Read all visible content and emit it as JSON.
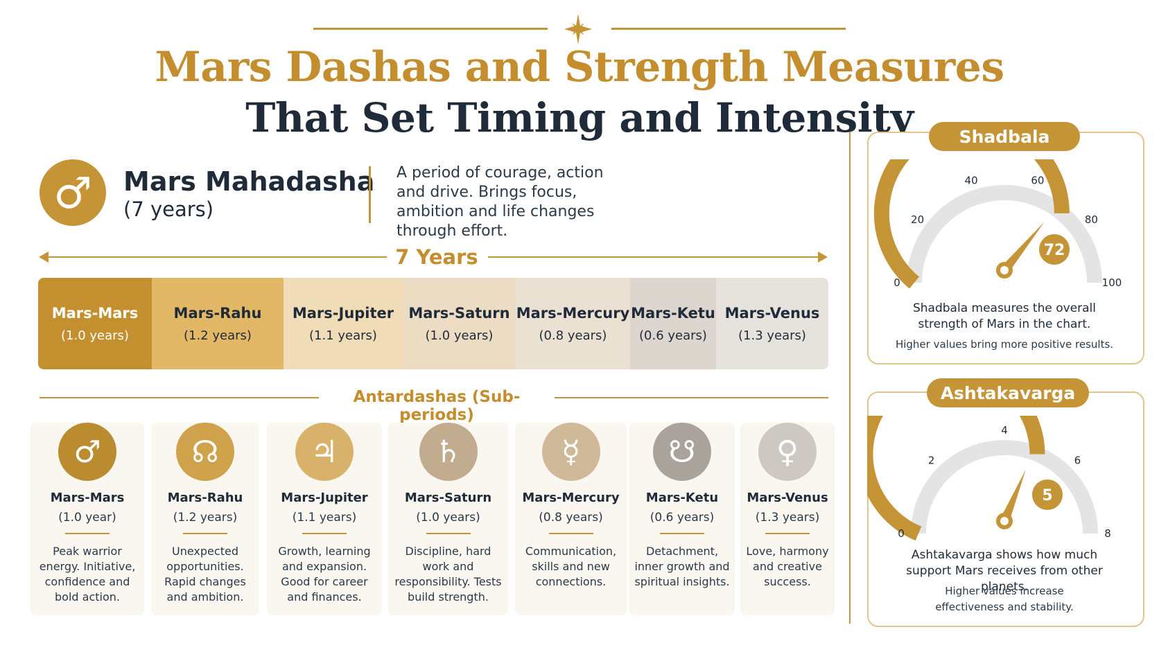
{
  "header": {
    "title_line1": "Mars Dashas and Strength Measures",
    "title_line2": "That Set Timing and Intensity"
  },
  "mahadasha": {
    "icon": "mars-symbol-icon",
    "title": "Mars Mahadasha",
    "years": "(7 years)",
    "description": "A period of courage, action and drive. Brings focus, ambition and life changes through effort."
  },
  "span_label": "7 Years",
  "period_bar": [
    {
      "name": "Mars-Mars",
      "years": "(1.0 years)",
      "color": "#c4902f",
      "text_color": "#ffffff"
    },
    {
      "name": "Mars-Rahu",
      "years": "(1.2 years)",
      "color": "#e2b867",
      "text_color": "#1f2b38"
    },
    {
      "name": "Mars-Jupiter",
      "years": "(1.1 years)",
      "color": "#f0dcb7",
      "text_color": "#1f2b38"
    },
    {
      "name": "Mars-Saturn",
      "years": "(1.0 years)",
      "color": "#ecdcc4",
      "text_color": "#1f2b38"
    },
    {
      "name": "Mars-Mercury",
      "years": "(0.8 years)",
      "color": "#ebe1d3",
      "text_color": "#1f2b38"
    },
    {
      "name": "Mars-Ketu",
      "years": "(0.6 years)",
      "color": "#dcd6ce",
      "text_color": "#1f2b38"
    },
    {
      "name": "Mars-Venus",
      "years": "(1.3 years)",
      "color": "#e6e2dc",
      "text_color": "#1f2b38"
    }
  ],
  "antardashas_label": "Antardashas (Sub-periods)",
  "cards": [
    {
      "icon": "mars-symbol-icon",
      "glyph": "♂",
      "color": "#bb8b2f",
      "name": "Mars-Mars",
      "years": "(1.0 year)",
      "description": "Peak warrior energy. Initiative, confidence and bold action."
    },
    {
      "icon": "rahu-symbol-icon",
      "glyph": "☊",
      "color": "#d1a24c",
      "name": "Mars-Rahu",
      "years": "(1.2 years)",
      "description": "Unexpected opportunities. Rapid changes and ambition."
    },
    {
      "icon": "jupiter-symbol-icon",
      "glyph": "♃",
      "color": "#d8b26a",
      "name": "Mars-Jupiter",
      "years": "(1.1 years)",
      "description": "Growth, learning and expansion. Good for career and finances."
    },
    {
      "icon": "saturn-symbol-icon",
      "glyph": "♄",
      "color": "#c1ac8f",
      "name": "Mars-Saturn",
      "years": "(1.0 years)",
      "description": "Discipline, hard work and responsibility. Tests build strength."
    },
    {
      "icon": "mercury-symbol-icon",
      "glyph": "☿",
      "color": "#cfb998",
      "name": "Mars-Mercury",
      "years": "(0.8 years)",
      "description": "Communication, skills and new connections."
    },
    {
      "icon": "ketu-symbol-icon",
      "glyph": "☋",
      "color": "#aaa39b",
      "name": "Mars-Ketu",
      "years": "(0.6 years)",
      "description": "Detachment, inner growth and spiritual insights."
    },
    {
      "icon": "venus-symbol-icon",
      "glyph": "♀",
      "color": "#cdc8c2",
      "name": "Mars-Venus",
      "years": "(1.3 years)",
      "description": "Love, harmony and creative success."
    }
  ],
  "shadbala": {
    "title": "Shadbala",
    "value": 72,
    "value_label": "72",
    "min": 0,
    "max": 100,
    "ticks": [
      "0",
      "20",
      "40",
      "60",
      "80",
      "100"
    ],
    "description": "Shadbala measures the overall strength of Mars in the chart.",
    "note": "Higher values bring more positive results."
  },
  "ashtakavarga": {
    "title": "Ashtakavarga",
    "value": 5,
    "value_label": "5",
    "min": 0,
    "max": 8,
    "ticks": [
      "0",
      "2",
      "4",
      "6",
      "8"
    ],
    "description": "Ashtakavarga shows how much support Mars receives from other planets.",
    "note": "Higher values increase effectiveness and stability."
  },
  "colors": {
    "accent": "#c49436",
    "dark": "#1f2b38",
    "gauge_track": "#e4e4e4"
  }
}
